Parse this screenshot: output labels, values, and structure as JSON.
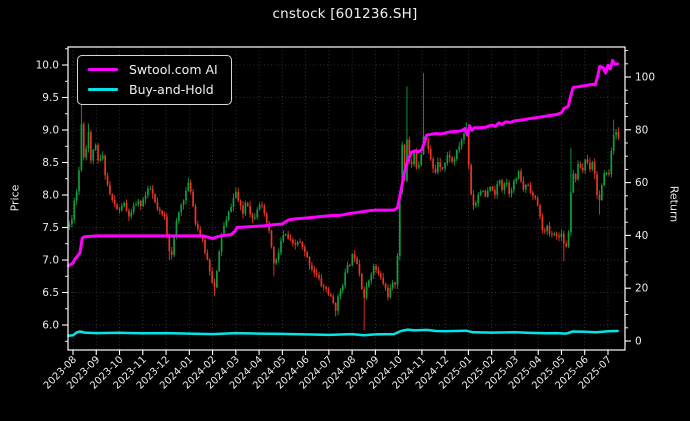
{
  "title": "cnstock [601236.SH]",
  "legend": {
    "items": [
      {
        "label": "Swtool.com AI",
        "color": "#ff00ff",
        "line_width": 4
      },
      {
        "label": "Buy-and-Hold",
        "color": "#00e6e6",
        "line_width": 3
      }
    ]
  },
  "axes": {
    "left": {
      "label": "Price"
    },
    "right": {
      "label": "Return"
    }
  },
  "colors": {
    "background": "#000000",
    "spine": "#ffffff",
    "tick_text": "#ececec",
    "grid": "#3f3f3f",
    "candle_up": "#0ca13c",
    "candle_down": "#e93522",
    "ai_line": "#ff00ff",
    "bh_line": "#00e6e6"
  },
  "chart_data": {
    "type": "candlestick+line",
    "title": "cnstock [601236.SH]",
    "x_unit": "months since 2023-08",
    "x_tick_labels": [
      "2023-08",
      "2023-09",
      "2023-10",
      "2023-11",
      "2023-12",
      "2024-01",
      "2024-02",
      "2024-03",
      "2024-04",
      "2024-05",
      "2024-06",
      "2024-07",
      "2024-08",
      "2024-09",
      "2024-10",
      "2024-11",
      "2024-12",
      "2025-01",
      "2025-02",
      "2025-03",
      "2025-04",
      "2025-05",
      "2025-06",
      "2025-07"
    ],
    "price_axis": {
      "label": "Price",
      "tick_values": [
        6.0,
        6.5,
        7.0,
        7.5,
        8.0,
        8.5,
        9.0,
        9.5,
        10.0
      ],
      "tick_labels": [
        "6.0",
        "6.5",
        "7.0",
        "7.5",
        "8.0",
        "8.5",
        "9.0",
        "9.5",
        "10.0"
      ]
    },
    "return_axis": {
      "label": "Return",
      "tick_values": [
        0,
        20,
        40,
        60,
        80,
        100
      ],
      "tick_labels": [
        "0",
        "20",
        "40",
        "60",
        "80",
        "100"
      ]
    },
    "grid": {
      "horizontal": "price_ticks_every_0.5",
      "vertical": "every_month",
      "style": "dotted"
    },
    "legend_position": "upper-left",
    "candles": {
      "count": 232,
      "t_span": [
        -0.15,
        23.45
      ],
      "close_path": [
        [
          -0.15,
          7.55
        ],
        [
          0,
          7.65
        ],
        [
          0.1,
          8.2
        ],
        [
          0.2,
          7.95
        ],
        [
          0.3,
          8.7
        ],
        [
          0.38,
          9.25
        ],
        [
          0.48,
          8.45
        ],
        [
          0.58,
          8.8
        ],
        [
          0.68,
          9.0
        ],
        [
          0.78,
          8.45
        ],
        [
          0.9,
          8.8
        ],
        [
          1.0,
          8.7
        ],
        [
          1.1,
          8.45
        ],
        [
          1.25,
          8.65
        ],
        [
          1.4,
          8.3
        ],
        [
          1.55,
          8.05
        ],
        [
          1.7,
          7.9
        ],
        [
          1.85,
          7.8
        ],
        [
          2.0,
          7.75
        ],
        [
          2.15,
          7.9
        ],
        [
          2.3,
          7.75
        ],
        [
          2.45,
          7.65
        ],
        [
          2.6,
          7.8
        ],
        [
          2.75,
          7.9
        ],
        [
          2.9,
          7.85
        ],
        [
          3.05,
          7.95
        ],
        [
          3.2,
          8.05
        ],
        [
          3.35,
          8.1
        ],
        [
          3.5,
          7.9
        ],
        [
          3.65,
          7.75
        ],
        [
          3.8,
          7.7
        ],
        [
          3.95,
          7.65
        ],
        [
          4.1,
          7.2
        ],
        [
          4.25,
          7.1
        ],
        [
          4.4,
          7.5
        ],
        [
          4.6,
          7.8
        ],
        [
          4.75,
          7.95
        ],
        [
          4.9,
          8.1
        ],
        [
          5.0,
          8.2
        ],
        [
          5.1,
          8.0
        ],
        [
          5.25,
          7.6
        ],
        [
          5.4,
          7.45
        ],
        [
          5.55,
          7.3
        ],
        [
          5.7,
          7.1
        ],
        [
          5.85,
          6.9
        ],
        [
          6.0,
          6.65
        ],
        [
          6.1,
          6.55
        ],
        [
          6.25,
          7.0
        ],
        [
          6.4,
          7.45
        ],
        [
          6.6,
          7.6
        ],
        [
          6.8,
          7.85
        ],
        [
          7.0,
          8.05
        ],
        [
          7.15,
          7.85
        ],
        [
          7.3,
          7.7
        ],
        [
          7.45,
          7.95
        ],
        [
          7.6,
          7.75
        ],
        [
          7.75,
          7.6
        ],
        [
          7.9,
          7.8
        ],
        [
          8.05,
          7.9
        ],
        [
          8.2,
          7.7
        ],
        [
          8.35,
          7.55
        ],
        [
          8.5,
          7.3
        ],
        [
          8.65,
          6.9
        ],
        [
          8.8,
          7.05
        ],
        [
          8.95,
          7.3
        ],
        [
          9.1,
          7.4
        ],
        [
          9.3,
          7.3
        ],
        [
          9.5,
          7.2
        ],
        [
          9.7,
          7.3
        ],
        [
          9.9,
          7.15
        ],
        [
          10.1,
          7.0
        ],
        [
          10.3,
          6.85
        ],
        [
          10.5,
          6.75
        ],
        [
          10.7,
          6.6
        ],
        [
          10.9,
          6.55
        ],
        [
          11.1,
          6.4
        ],
        [
          11.3,
          6.25
        ],
        [
          11.45,
          6.5
        ],
        [
          11.6,
          6.65
        ],
        [
          11.75,
          6.85
        ],
        [
          11.9,
          6.95
        ],
        [
          12.05,
          7.1
        ],
        [
          12.2,
          7.0
        ],
        [
          12.35,
          6.75
        ],
        [
          12.5,
          6.4
        ],
        [
          12.65,
          6.6
        ],
        [
          12.8,
          6.8
        ],
        [
          12.95,
          6.9
        ],
        [
          13.1,
          6.8
        ],
        [
          13.25,
          6.7
        ],
        [
          13.4,
          6.6
        ],
        [
          13.55,
          6.45
        ],
        [
          13.7,
          6.6
        ],
        [
          13.85,
          6.65
        ],
        [
          13.95,
          7.1
        ],
        [
          14.05,
          8.0
        ],
        [
          14.15,
          8.8
        ],
        [
          14.25,
          8.2
        ],
        [
          14.35,
          8.9
        ],
        [
          14.5,
          8.35
        ],
        [
          14.65,
          8.65
        ],
        [
          14.8,
          8.4
        ],
        [
          14.95,
          8.6
        ],
        [
          15.1,
          9.0
        ],
        [
          15.25,
          8.75
        ],
        [
          15.4,
          8.5
        ],
        [
          15.55,
          8.3
        ],
        [
          15.7,
          8.55
        ],
        [
          15.85,
          8.4
        ],
        [
          16.0,
          8.5
        ],
        [
          16.15,
          8.65
        ],
        [
          16.3,
          8.5
        ],
        [
          16.45,
          8.6
        ],
        [
          16.6,
          8.75
        ],
        [
          16.75,
          8.9
        ],
        [
          16.9,
          9.0
        ],
        [
          17.0,
          8.55
        ],
        [
          17.1,
          8.05
        ],
        [
          17.25,
          7.8
        ],
        [
          17.4,
          8.0
        ],
        [
          17.55,
          8.1
        ],
        [
          17.7,
          7.95
        ],
        [
          17.85,
          8.05
        ],
        [
          18.0,
          8.15
        ],
        [
          18.15,
          7.95
        ],
        [
          18.3,
          8.3
        ],
        [
          18.45,
          8.1
        ],
        [
          18.6,
          8.25
        ],
        [
          18.75,
          8.05
        ],
        [
          18.9,
          8.15
        ],
        [
          19.05,
          8.25
        ],
        [
          19.2,
          8.35
        ],
        [
          19.35,
          8.05
        ],
        [
          19.5,
          8.2
        ],
        [
          19.65,
          8.1
        ],
        [
          19.8,
          7.95
        ],
        [
          19.95,
          7.9
        ],
        [
          20.1,
          7.6
        ],
        [
          20.25,
          7.4
        ],
        [
          20.4,
          7.5
        ],
        [
          20.55,
          7.35
        ],
        [
          20.7,
          7.45
        ],
        [
          20.85,
          7.3
        ],
        [
          21.0,
          7.45
        ],
        [
          21.15,
          7.15
        ],
        [
          21.3,
          7.4
        ],
        [
          21.45,
          8.35
        ],
        [
          21.6,
          8.25
        ],
        [
          21.75,
          8.5
        ],
        [
          21.9,
          8.35
        ],
        [
          22.05,
          8.6
        ],
        [
          22.2,
          8.4
        ],
        [
          22.35,
          8.55
        ],
        [
          22.5,
          8.1
        ],
        [
          22.6,
          7.85
        ],
        [
          22.75,
          8.15
        ],
        [
          22.9,
          8.4
        ],
        [
          23.05,
          8.3
        ],
        [
          23.2,
          8.9
        ],
        [
          23.35,
          9.0
        ],
        [
          23.45,
          8.85
        ]
      ],
      "wick_highs": [
        [
          0.38,
          9.4
        ],
        [
          0.68,
          9.1
        ],
        [
          14.35,
          9.67
        ],
        [
          15.1,
          9.88
        ],
        [
          16.9,
          9.12
        ],
        [
          21.45,
          8.72
        ],
        [
          23.2,
          9.16
        ]
      ],
      "wick_lows": [
        [
          4.15,
          7.0
        ],
        [
          6.1,
          6.45
        ],
        [
          8.65,
          6.75
        ],
        [
          11.3,
          6.13
        ],
        [
          12.5,
          5.92
        ],
        [
          13.55,
          6.38
        ],
        [
          21.15,
          6.98
        ],
        [
          22.6,
          7.7
        ]
      ]
    },
    "series": [
      {
        "name": "Swtool.com AI",
        "axis": "return",
        "color": "#ff00ff",
        "width": 3,
        "points": [
          [
            -0.2,
            28.5
          ],
          [
            0,
            29.5
          ],
          [
            0.08,
            31
          ],
          [
            0.18,
            32
          ],
          [
            0.3,
            33.5
          ],
          [
            0.4,
            39
          ],
          [
            0.5,
            39.5
          ],
          [
            1,
            39.8
          ],
          [
            2,
            39.8
          ],
          [
            3,
            39.8
          ],
          [
            4,
            39.8
          ],
          [
            5,
            39.8
          ],
          [
            5.6,
            39.8
          ],
          [
            5.8,
            39.3
          ],
          [
            6.0,
            38.8
          ],
          [
            6.2,
            39.5
          ],
          [
            6.5,
            40
          ],
          [
            6.8,
            40.3
          ],
          [
            6.95,
            41.5
          ],
          [
            7.05,
            43
          ],
          [
            7.4,
            43.2
          ],
          [
            7.8,
            43.4
          ],
          [
            8.2,
            43.6
          ],
          [
            8.6,
            44
          ],
          [
            9.0,
            44.3
          ],
          [
            9.25,
            45.8
          ],
          [
            9.5,
            46.2
          ],
          [
            9.9,
            46.5
          ],
          [
            10.3,
            46.8
          ],
          [
            10.7,
            47.2
          ],
          [
            11.1,
            47.5
          ],
          [
            11.5,
            47.6
          ],
          [
            11.9,
            48.3
          ],
          [
            12.3,
            48.8
          ],
          [
            12.7,
            49.3
          ],
          [
            13.0,
            49.6
          ],
          [
            13.4,
            49.6
          ],
          [
            13.8,
            49.6
          ],
          [
            13.95,
            50.5
          ],
          [
            14.1,
            57
          ],
          [
            14.25,
            64
          ],
          [
            14.4,
            68.5
          ],
          [
            14.55,
            71.5
          ],
          [
            14.7,
            72
          ],
          [
            14.85,
            71.7
          ],
          [
            15.0,
            72.5
          ],
          [
            15.1,
            75
          ],
          [
            15.2,
            78
          ],
          [
            15.4,
            78.3
          ],
          [
            15.6,
            78.6
          ],
          [
            15.8,
            78.4
          ],
          [
            16.0,
            78.8
          ],
          [
            16.2,
            79.2
          ],
          [
            16.5,
            79.4
          ],
          [
            16.7,
            79.6
          ],
          [
            16.85,
            80.5
          ],
          [
            16.95,
            78
          ],
          [
            17.05,
            81.5
          ],
          [
            17.15,
            79.8
          ],
          [
            17.25,
            80.8
          ],
          [
            17.5,
            80.8
          ],
          [
            17.75,
            81
          ],
          [
            18.0,
            81.8
          ],
          [
            18.15,
            81.3
          ],
          [
            18.3,
            82.6
          ],
          [
            18.45,
            82
          ],
          [
            18.6,
            83
          ],
          [
            18.8,
            82.8
          ],
          [
            19.0,
            83.4
          ],
          [
            19.3,
            83.7
          ],
          [
            19.6,
            84.2
          ],
          [
            19.9,
            84.6
          ],
          [
            20.2,
            85
          ],
          [
            20.5,
            85.4
          ],
          [
            20.8,
            85.8
          ],
          [
            21.0,
            86.5
          ],
          [
            21.1,
            88
          ],
          [
            21.2,
            88.5
          ],
          [
            21.3,
            89
          ],
          [
            21.4,
            93
          ],
          [
            21.5,
            96
          ],
          [
            21.7,
            96.3
          ],
          [
            21.9,
            96.6
          ],
          [
            22.1,
            96.8
          ],
          [
            22.3,
            97.2
          ],
          [
            22.45,
            97
          ],
          [
            22.55,
            100
          ],
          [
            22.65,
            104
          ],
          [
            22.8,
            103.5
          ],
          [
            22.9,
            101.5
          ],
          [
            23.0,
            104.5
          ],
          [
            23.1,
            103
          ],
          [
            23.2,
            106.3
          ],
          [
            23.3,
            104.8
          ],
          [
            23.42,
            105
          ]
        ]
      },
      {
        "name": "Buy-and-Hold",
        "axis": "return",
        "color": "#00e6e6",
        "width": 2.5,
        "points": [
          [
            -0.2,
            2.0
          ],
          [
            0,
            2.2
          ],
          [
            0.15,
            3.2
          ],
          [
            0.3,
            3.6
          ],
          [
            0.5,
            3.2
          ],
          [
            1,
            3.0
          ],
          [
            2,
            3.1
          ],
          [
            3,
            2.9
          ],
          [
            4,
            3.0
          ],
          [
            5,
            2.8
          ],
          [
            6,
            2.6
          ],
          [
            7,
            3.0
          ],
          [
            8,
            2.8
          ],
          [
            9,
            2.7
          ],
          [
            10,
            2.5
          ],
          [
            11,
            2.3
          ],
          [
            12,
            2.6
          ],
          [
            12.5,
            2.2
          ],
          [
            13,
            2.5
          ],
          [
            13.8,
            2.6
          ],
          [
            14.1,
            3.8
          ],
          [
            14.4,
            4.3
          ],
          [
            14.7,
            4.0
          ],
          [
            15.2,
            4.2
          ],
          [
            15.6,
            3.8
          ],
          [
            16,
            3.7
          ],
          [
            16.9,
            3.9
          ],
          [
            17.2,
            3.3
          ],
          [
            18,
            3.2
          ],
          [
            19,
            3.3
          ],
          [
            19.5,
            3.1
          ],
          [
            20.3,
            2.9
          ],
          [
            20.8,
            3.0
          ],
          [
            21.2,
            2.8
          ],
          [
            21.5,
            3.6
          ],
          [
            22,
            3.5
          ],
          [
            22.5,
            3.3
          ],
          [
            23,
            3.7
          ],
          [
            23.42,
            3.8
          ]
        ]
      }
    ]
  }
}
